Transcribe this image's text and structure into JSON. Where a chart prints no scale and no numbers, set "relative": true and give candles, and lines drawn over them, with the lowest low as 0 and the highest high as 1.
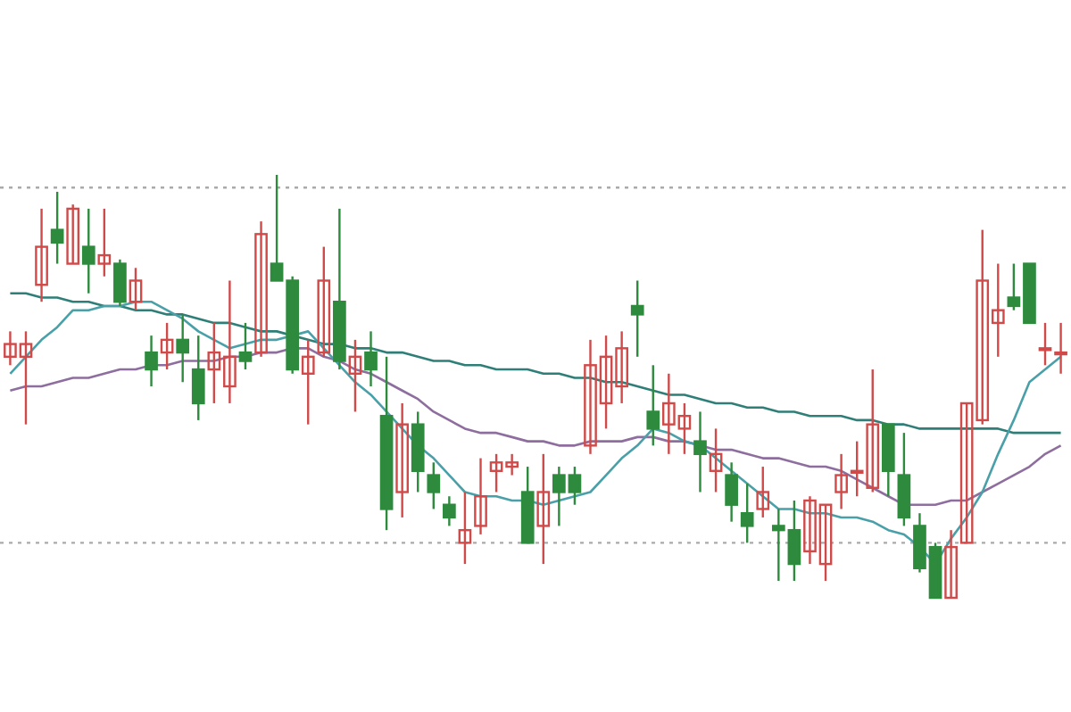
{
  "chart_data": {
    "type": "candlestick",
    "relative": true,
    "categories": [
      null,
      null,
      null,
      null,
      null,
      null,
      null,
      null,
      null,
      null,
      null,
      null,
      null,
      null,
      null,
      null,
      null,
      null,
      null,
      null,
      null,
      null,
      null,
      null,
      null,
      null,
      null,
      null,
      null,
      null,
      null,
      null,
      null,
      null,
      null,
      null,
      null,
      null,
      null,
      null,
      null,
      null,
      null,
      null,
      null,
      null,
      null,
      null,
      null,
      null,
      null,
      null,
      null,
      null,
      null,
      null,
      null,
      null,
      null,
      null,
      null,
      null,
      null,
      null,
      null,
      null,
      null,
      null
    ],
    "ohlc": [
      [
        0.57,
        0.63,
        0.55,
        0.6
      ],
      [
        0.57,
        0.63,
        0.41,
        0.6
      ],
      [
        0.74,
        0.92,
        0.7,
        0.83
      ],
      [
        0.87,
        0.96,
        0.79,
        0.84
      ],
      [
        0.79,
        0.93,
        0.79,
        0.92
      ],
      [
        0.83,
        0.92,
        0.72,
        0.79
      ],
      [
        0.79,
        0.92,
        0.76,
        0.81
      ],
      [
        0.79,
        0.8,
        0.69,
        0.7
      ],
      [
        0.7,
        0.78,
        0.68,
        0.75
      ],
      [
        0.58,
        0.62,
        0.5,
        0.54
      ],
      [
        0.58,
        0.65,
        0.54,
        0.61
      ],
      [
        0.61,
        0.67,
        0.51,
        0.58
      ],
      [
        0.54,
        0.62,
        0.42,
        0.46
      ],
      [
        0.54,
        0.65,
        0.46,
        0.58
      ],
      [
        0.5,
        0.75,
        0.46,
        0.57
      ],
      [
        0.58,
        0.65,
        0.54,
        0.56
      ],
      [
        0.58,
        0.89,
        0.57,
        0.86
      ],
      [
        0.79,
        1.0,
        0.75,
        0.75
      ],
      [
        0.75,
        0.76,
        0.53,
        0.54
      ],
      [
        0.53,
        0.61,
        0.41,
        0.57
      ],
      [
        0.58,
        0.83,
        0.57,
        0.75
      ],
      [
        0.7,
        0.92,
        0.54,
        0.56
      ],
      [
        0.53,
        0.61,
        0.44,
        0.57
      ],
      [
        0.58,
        0.63,
        0.5,
        0.54
      ],
      [
        0.43,
        0.57,
        0.16,
        0.21
      ],
      [
        0.25,
        0.46,
        0.19,
        0.41
      ],
      [
        0.41,
        0.44,
        0.25,
        0.3
      ],
      [
        0.29,
        0.32,
        0.21,
        0.25
      ],
      [
        0.22,
        0.24,
        0.17,
        0.19
      ],
      [
        0.13,
        0.25,
        0.08,
        0.16
      ],
      [
        0.17,
        0.33,
        0.15,
        0.24
      ],
      [
        0.3,
        0.34,
        0.25,
        0.32
      ],
      [
        0.31,
        0.34,
        0.29,
        0.32
      ],
      [
        0.25,
        0.31,
        0.13,
        0.13
      ],
      [
        0.17,
        0.34,
        0.08,
        0.25
      ],
      [
        0.29,
        0.31,
        0.17,
        0.25
      ],
      [
        0.29,
        0.31,
        0.22,
        0.25
      ],
      [
        0.36,
        0.61,
        0.34,
        0.55
      ],
      [
        0.46,
        0.62,
        0.4,
        0.57
      ],
      [
        0.5,
        0.63,
        0.46,
        0.59
      ],
      [
        0.69,
        0.75,
        0.57,
        0.67
      ],
      [
        0.44,
        0.55,
        0.36,
        0.4
      ],
      [
        0.41,
        0.53,
        0.34,
        0.46
      ],
      [
        0.4,
        0.46,
        0.34,
        0.43
      ],
      [
        0.37,
        0.44,
        0.25,
        0.34
      ],
      [
        0.3,
        0.4,
        0.25,
        0.34
      ],
      [
        0.29,
        0.32,
        0.18,
        0.22
      ],
      [
        0.2,
        0.27,
        0.13,
        0.17
      ],
      [
        0.21,
        0.31,
        0.19,
        0.25
      ],
      [
        0.17,
        0.21,
        0.04,
        0.16
      ],
      [
        0.16,
        0.23,
        0.04,
        0.08
      ],
      [
        0.11,
        0.24,
        0.08,
        0.23
      ],
      [
        0.08,
        0.22,
        0.04,
        0.22
      ],
      [
        0.25,
        0.34,
        0.21,
        0.29
      ],
      [
        0.3,
        0.37,
        0.24,
        0.3
      ],
      [
        0.26,
        0.54,
        0.25,
        0.41
      ],
      [
        0.41,
        0.41,
        0.24,
        0.3
      ],
      [
        0.29,
        0.39,
        0.17,
        0.19
      ],
      [
        0.17,
        0.2,
        0.06,
        0.07
      ],
      [
        0.12,
        0.13,
        0.0,
        0.0
      ],
      [
        0.0,
        0.16,
        0.0,
        0.12
      ],
      [
        0.13,
        0.46,
        0.13,
        0.46
      ],
      [
        0.42,
        0.87,
        0.41,
        0.75
      ],
      [
        0.65,
        0.79,
        0.57,
        0.68
      ],
      [
        0.71,
        0.79,
        0.68,
        0.69
      ],
      [
        0.79,
        0.79,
        0.65,
        0.65
      ],
      [
        0.59,
        0.65,
        0.55,
        0.59
      ],
      [
        0.58,
        0.65,
        0.53,
        0.58
      ]
    ],
    "colors": [
      "#d04a4a",
      "#d04a4a",
      "#d04a4a",
      "#2e8b3e",
      "#d04a4a",
      "#2e8b3e",
      "#d04a4a",
      "#2e8b3e",
      "#d04a4a",
      "#2e8b3e",
      "#d04a4a",
      "#2e8b3e",
      "#2e8b3e",
      "#d04a4a",
      "#d04a4a",
      "#2e8b3e",
      "#d04a4a",
      "#2e8b3e",
      "#2e8b3e",
      "#d04a4a",
      "#d04a4a",
      "#2e8b3e",
      "#d04a4a",
      "#2e8b3e",
      "#2e8b3e",
      "#d04a4a",
      "#2e8b3e",
      "#2e8b3e",
      "#2e8b3e",
      "#d04a4a",
      "#d04a4a",
      "#d04a4a",
      "#d04a4a",
      "#2e8b3e",
      "#d04a4a",
      "#2e8b3e",
      "#2e8b3e",
      "#d04a4a",
      "#d04a4a",
      "#d04a4a",
      "#2e8b3e",
      "#2e8b3e",
      "#d04a4a",
      "#d04a4a",
      "#2e8b3e",
      "#d04a4a",
      "#2e8b3e",
      "#2e8b3e",
      "#d04a4a",
      "#2e8b3e",
      "#2e8b3e",
      "#d04a4a",
      "#d04a4a",
      "#d04a4a",
      "#d04a4a",
      "#d04a4a",
      "#2e8b3e",
      "#2e8b3e",
      "#2e8b3e",
      "#2e8b3e",
      "#d04a4a",
      "#d04a4a",
      "#d04a4a",
      "#d04a4a",
      "#2e8b3e",
      "#2e8b3e",
      "#d04a4a",
      "#d04a4a"
    ],
    "series": [
      {
        "type": "line",
        "color": "#2f7f78",
        "values": [
          0.72,
          0.72,
          0.71,
          0.71,
          0.7,
          0.7,
          0.69,
          0.69,
          0.68,
          0.68,
          0.67,
          0.67,
          0.66,
          0.65,
          0.65,
          0.64,
          0.63,
          0.63,
          0.62,
          0.61,
          0.6,
          0.6,
          0.59,
          0.59,
          0.58,
          0.58,
          0.57,
          0.56,
          0.56,
          0.55,
          0.55,
          0.54,
          0.54,
          0.54,
          0.53,
          0.53,
          0.52,
          0.52,
          0.51,
          0.51,
          0.5,
          0.49,
          0.48,
          0.48,
          0.47,
          0.46,
          0.46,
          0.45,
          0.45,
          0.44,
          0.44,
          0.43,
          0.43,
          0.43,
          0.42,
          0.42,
          0.41,
          0.41,
          0.4,
          0.4,
          0.4,
          0.4,
          0.4,
          0.4,
          0.39,
          0.39,
          0.39,
          0.39
        ]
      },
      {
        "type": "line",
        "color": "#8e6e9e",
        "values": [
          0.49,
          0.5,
          0.5,
          0.51,
          0.52,
          0.52,
          0.53,
          0.54,
          0.54,
          0.55,
          0.55,
          0.56,
          0.56,
          0.56,
          0.57,
          0.57,
          0.58,
          0.58,
          0.59,
          0.59,
          0.57,
          0.56,
          0.54,
          0.53,
          0.51,
          0.49,
          0.47,
          0.44,
          0.42,
          0.4,
          0.39,
          0.39,
          0.38,
          0.37,
          0.37,
          0.36,
          0.36,
          0.37,
          0.37,
          0.37,
          0.38,
          0.38,
          0.37,
          0.37,
          0.36,
          0.35,
          0.35,
          0.34,
          0.33,
          0.33,
          0.32,
          0.31,
          0.31,
          0.3,
          0.28,
          0.26,
          0.24,
          0.22,
          0.22,
          0.22,
          0.23,
          0.23,
          0.25,
          0.27,
          0.29,
          0.31,
          0.34,
          0.36
        ]
      },
      {
        "type": "line",
        "color": "#4aa0a8",
        "values": [
          0.53,
          0.57,
          0.61,
          0.64,
          0.68,
          0.68,
          0.69,
          0.69,
          0.7,
          0.7,
          0.68,
          0.66,
          0.63,
          0.61,
          0.59,
          0.6,
          0.61,
          0.61,
          0.62,
          0.63,
          0.59,
          0.55,
          0.51,
          0.48,
          0.44,
          0.4,
          0.36,
          0.33,
          0.29,
          0.25,
          0.24,
          0.24,
          0.23,
          0.23,
          0.22,
          0.23,
          0.24,
          0.25,
          0.29,
          0.33,
          0.36,
          0.4,
          0.39,
          0.37,
          0.36,
          0.33,
          0.3,
          0.27,
          0.24,
          0.21,
          0.21,
          0.2,
          0.2,
          0.19,
          0.19,
          0.18,
          0.16,
          0.15,
          0.12,
          0.08,
          0.14,
          0.19,
          0.25,
          0.34,
          0.42,
          0.51,
          0.54,
          0.57
        ]
      }
    ],
    "ref_lines": [
      {
        "axis": "y",
        "value": 0.97,
        "color": "#aaaaaa",
        "line_style": "dotted"
      },
      {
        "axis": "y",
        "value": 0.13,
        "color": "#aaaaaa",
        "line_style": "dotted"
      }
    ]
  }
}
